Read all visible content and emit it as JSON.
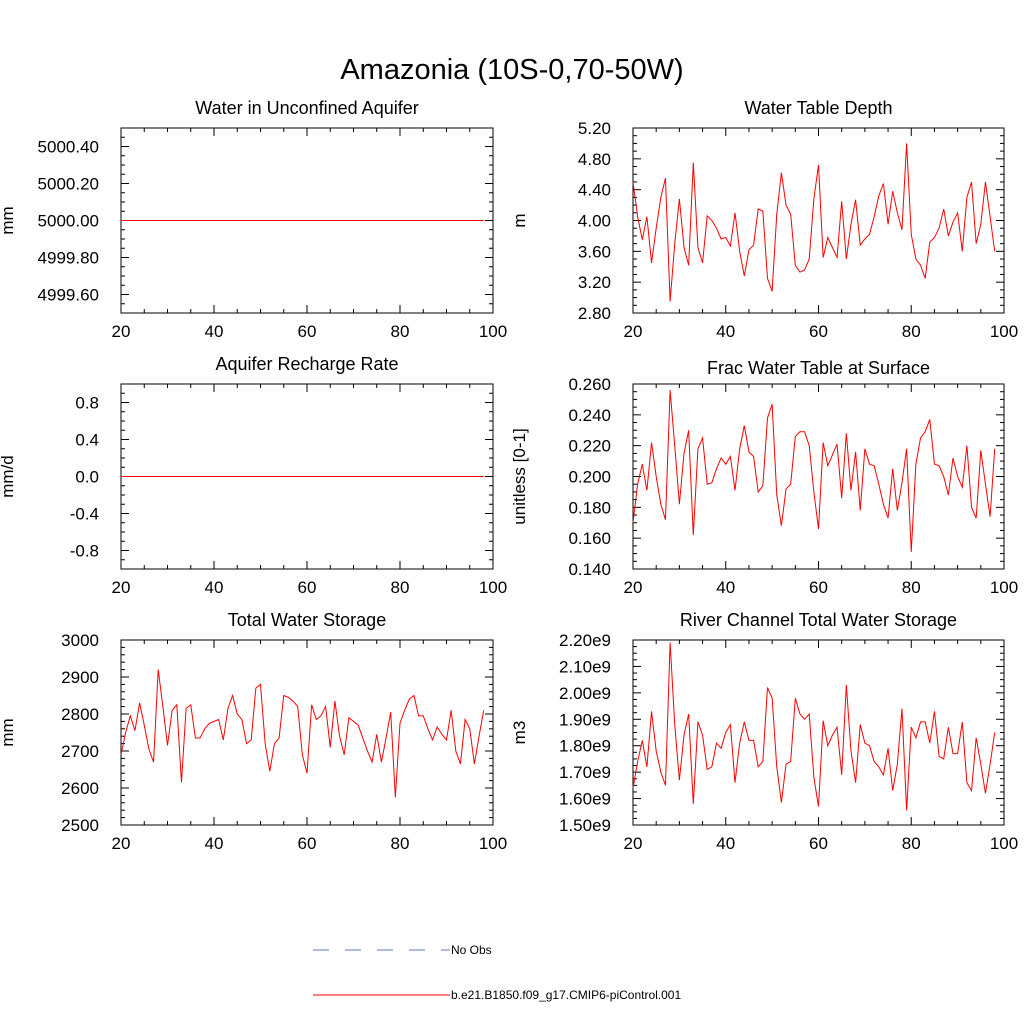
{
  "title": "Amazonia (10S-0,70-50W)",
  "colors": {
    "series": "#ff0000",
    "obs": "#5b7bb5",
    "axis": "#000000"
  },
  "legend": {
    "items": [
      {
        "label": "No Obs",
        "style": "dashed",
        "color": "#5b7bb5"
      },
      {
        "label": "b.e21.B1850.f09_g17.CMIP6-piControl.001",
        "style": "solid",
        "color": "#ff0000"
      }
    ]
  },
  "chart_data": [
    {
      "type": "line",
      "title": "Water in Unconfined Aquifer",
      "ylabel": "mm",
      "xlim": [
        20,
        100
      ],
      "ylim": [
        4999.5,
        5000.5
      ],
      "xticks": [
        20,
        40,
        60,
        80,
        100
      ],
      "xtick_labels": [
        "20",
        "40",
        "60",
        "80",
        "100"
      ],
      "yticks": [
        4999.6,
        4999.8,
        5000.0,
        5000.2,
        5000.4
      ],
      "ytick_labels": [
        "4999.60",
        "4999.80",
        "5000.00",
        "5000.20",
        "5000.40"
      ],
      "yminor": 0.05,
      "series": [
        {
          "x_start": 20,
          "x_step": 1,
          "values": [
            5000,
            5000,
            5000,
            5000,
            5000,
            5000,
            5000,
            5000,
            5000,
            5000,
            5000,
            5000,
            5000,
            5000,
            5000,
            5000,
            5000,
            5000,
            5000,
            5000,
            5000,
            5000,
            5000,
            5000,
            5000,
            5000,
            5000,
            5000,
            5000,
            5000,
            5000,
            5000,
            5000,
            5000,
            5000,
            5000,
            5000,
            5000,
            5000,
            5000,
            5000,
            5000,
            5000,
            5000,
            5000,
            5000,
            5000,
            5000,
            5000,
            5000,
            5000,
            5000,
            5000,
            5000,
            5000,
            5000,
            5000,
            5000,
            5000,
            5000,
            5000,
            5000,
            5000,
            5000,
            5000,
            5000,
            5000,
            5000,
            5000,
            5000,
            5000,
            5000,
            5000,
            5000,
            5000,
            5000,
            5000,
            5000,
            5000
          ]
        }
      ]
    },
    {
      "type": "line",
      "title": "Water Table Depth",
      "ylabel": "m",
      "xlim": [
        20,
        100
      ],
      "ylim": [
        2.8,
        5.2
      ],
      "xticks": [
        20,
        40,
        60,
        80,
        100
      ],
      "xtick_labels": [
        "20",
        "40",
        "60",
        "80",
        "100"
      ],
      "yticks": [
        2.8,
        3.2,
        3.6,
        4.0,
        4.4,
        4.8,
        5.2
      ],
      "ytick_labels": [
        "2.80",
        "3.20",
        "3.60",
        "4.00",
        "4.40",
        "4.80",
        "5.20"
      ],
      "yminor": 0.1,
      "series": [
        {
          "x_start": 20,
          "x_step": 1,
          "values": [
            4.5,
            4.05,
            3.75,
            4.05,
            3.45,
            3.9,
            4.3,
            4.55,
            2.95,
            3.7,
            4.28,
            3.65,
            3.42,
            4.75,
            3.65,
            3.45,
            4.06,
            4.0,
            3.9,
            3.76,
            3.78,
            3.67,
            4.1,
            3.6,
            3.28,
            3.62,
            3.68,
            4.15,
            4.12,
            3.25,
            3.08,
            4.08,
            4.62,
            4.2,
            4.08,
            3.42,
            3.33,
            3.36,
            3.5,
            4.28,
            4.72,
            3.52,
            3.78,
            3.65,
            3.52,
            4.25,
            3.5,
            3.95,
            4.27,
            3.68,
            3.76,
            3.82,
            4.05,
            4.32,
            4.48,
            3.95,
            4.38,
            4.1,
            3.88,
            5.0,
            3.82,
            3.5,
            3.42,
            3.25,
            3.72,
            3.78,
            3.9,
            4.15,
            3.8,
            3.98,
            4.1,
            3.6,
            4.3,
            4.5,
            3.7,
            3.95,
            4.5,
            4.05,
            3.6
          ]
        }
      ]
    },
    {
      "type": "line",
      "title": "Aquifer Recharge Rate",
      "ylabel": "mm/d",
      "xlim": [
        20,
        100
      ],
      "ylim": [
        -1.0,
        1.0
      ],
      "xticks": [
        20,
        40,
        60,
        80,
        100
      ],
      "xtick_labels": [
        "20",
        "40",
        "60",
        "80",
        "100"
      ],
      "yticks": [
        -0.8,
        -0.4,
        0.0,
        0.4,
        0.8
      ],
      "ytick_labels": [
        "-0.8",
        "-0.4",
        "0.0",
        "0.4",
        "0.8"
      ],
      "yminor": 0.1,
      "series": [
        {
          "x_start": 20,
          "x_step": 1,
          "values": [
            0,
            0,
            0,
            0,
            0,
            0,
            0,
            0,
            0,
            0,
            0,
            0,
            0,
            0,
            0,
            0,
            0,
            0,
            0,
            0,
            0,
            0,
            0,
            0,
            0,
            0,
            0,
            0,
            0,
            0,
            0,
            0,
            0,
            0,
            0,
            0,
            0,
            0,
            0,
            0,
            0,
            0,
            0,
            0,
            0,
            0,
            0,
            0,
            0,
            0,
            0,
            0,
            0,
            0,
            0,
            0,
            0,
            0,
            0,
            0,
            0,
            0,
            0,
            0,
            0,
            0,
            0,
            0,
            0,
            0,
            0,
            0,
            0,
            0,
            0,
            0,
            0,
            0,
            0
          ]
        }
      ]
    },
    {
      "type": "line",
      "title": "Frac Water Table at Surface",
      "ylabel": "unitless [0-1]",
      "xlim": [
        20,
        100
      ],
      "ylim": [
        0.14,
        0.26
      ],
      "xticks": [
        20,
        40,
        60,
        80,
        100
      ],
      "xtick_labels": [
        "20",
        "40",
        "60",
        "80",
        "100"
      ],
      "yticks": [
        0.14,
        0.16,
        0.18,
        0.2,
        0.22,
        0.24,
        0.26
      ],
      "ytick_labels": [
        "0.140",
        "0.160",
        "0.180",
        "0.200",
        "0.220",
        "0.240",
        "0.260"
      ],
      "yminor": 0.005,
      "series": [
        {
          "x_start": 20,
          "x_step": 1,
          "values": [
            0.17,
            0.195,
            0.208,
            0.191,
            0.222,
            0.2,
            0.182,
            0.172,
            0.256,
            0.22,
            0.182,
            0.215,
            0.23,
            0.162,
            0.218,
            0.225,
            0.195,
            0.196,
            0.205,
            0.212,
            0.208,
            0.213,
            0.191,
            0.218,
            0.233,
            0.216,
            0.213,
            0.19,
            0.194,
            0.238,
            0.247,
            0.188,
            0.168,
            0.192,
            0.195,
            0.226,
            0.229,
            0.229,
            0.22,
            0.19,
            0.166,
            0.222,
            0.207,
            0.214,
            0.221,
            0.186,
            0.228,
            0.191,
            0.216,
            0.178,
            0.218,
            0.208,
            0.207,
            0.195,
            0.182,
            0.173,
            0.205,
            0.178,
            0.196,
            0.218,
            0.151,
            0.208,
            0.225,
            0.229,
            0.237,
            0.208,
            0.207,
            0.2,
            0.188,
            0.212,
            0.2,
            0.193,
            0.22,
            0.18,
            0.173,
            0.217,
            0.195,
            0.174,
            0.218
          ]
        }
      ]
    },
    {
      "type": "line",
      "title": "Total Water Storage",
      "ylabel": "mm",
      "xlim": [
        20,
        100
      ],
      "ylim": [
        2500,
        3000
      ],
      "xticks": [
        20,
        40,
        60,
        80,
        100
      ],
      "xtick_labels": [
        "20",
        "40",
        "60",
        "80",
        "100"
      ],
      "yticks": [
        2500,
        2600,
        2700,
        2800,
        2900,
        3000
      ],
      "ytick_labels": [
        "2500",
        "2600",
        "2700",
        "2800",
        "2900",
        "3000"
      ],
      "yminor": 20,
      "series": [
        {
          "x_start": 20,
          "x_step": 1,
          "values": [
            2690,
            2750,
            2795,
            2755,
            2830,
            2770,
            2705,
            2670,
            2920,
            2820,
            2715,
            2810,
            2825,
            2615,
            2815,
            2825,
            2735,
            2735,
            2760,
            2775,
            2780,
            2785,
            2730,
            2815,
            2850,
            2800,
            2785,
            2720,
            2730,
            2870,
            2880,
            2720,
            2645,
            2720,
            2735,
            2850,
            2845,
            2835,
            2820,
            2690,
            2640,
            2825,
            2785,
            2795,
            2820,
            2710,
            2835,
            2740,
            2690,
            2790,
            2780,
            2770,
            2735,
            2700,
            2670,
            2745,
            2670,
            2735,
            2805,
            2575,
            2775,
            2810,
            2840,
            2850,
            2795,
            2795,
            2760,
            2730,
            2765,
            2745,
            2730,
            2810,
            2700,
            2665,
            2785,
            2760,
            2665,
            2740,
            2810
          ]
        }
      ]
    },
    {
      "type": "line",
      "title": "River Channel Total Water Storage",
      "ylabel": "m3",
      "xlim": [
        20,
        100
      ],
      "ylim": [
        1500000000,
        2200000000
      ],
      "xticks": [
        20,
        40,
        60,
        80,
        100
      ],
      "xtick_labels": [
        "20",
        "40",
        "60",
        "80",
        "100"
      ],
      "yticks": [
        1500000000,
        1600000000,
        1700000000,
        1800000000,
        1900000000,
        2000000000,
        2100000000,
        2200000000
      ],
      "ytick_labels": [
        "1.50e9",
        "1.60e9",
        "1.70e9",
        "1.80e9",
        "1.90e9",
        "2.00e9",
        "2.10e9",
        "2.20e9"
      ],
      "yminor": 25000000,
      "series": [
        {
          "x_start": 20,
          "x_step": 1,
          "values": [
            1640000000,
            1740000000,
            1820000000,
            1720000000,
            1930000000,
            1780000000,
            1700000000,
            1650000000,
            2190000000,
            1880000000,
            1670000000,
            1840000000,
            1920000000,
            1580000000,
            1890000000,
            1840000000,
            1710000000,
            1720000000,
            1810000000,
            1790000000,
            1850000000,
            1880000000,
            1660000000,
            1810000000,
            1890000000,
            1820000000,
            1820000000,
            1720000000,
            1740000000,
            2020000000,
            1980000000,
            1720000000,
            1585000000,
            1730000000,
            1740000000,
            1980000000,
            1920000000,
            1900000000,
            1920000000,
            1680000000,
            1570000000,
            1895000000,
            1800000000,
            1840000000,
            1870000000,
            1690000000,
            2030000000,
            1780000000,
            1660000000,
            1880000000,
            1810000000,
            1800000000,
            1740000000,
            1720000000,
            1690000000,
            1790000000,
            1630000000,
            1730000000,
            1940000000,
            1555000000,
            1870000000,
            1830000000,
            1890000000,
            1890000000,
            1810000000,
            1930000000,
            1760000000,
            1750000000,
            1870000000,
            1770000000,
            1770000000,
            1890000000,
            1660000000,
            1630000000,
            1830000000,
            1730000000,
            1620000000,
            1730000000,
            1850000000
          ]
        }
      ]
    }
  ]
}
